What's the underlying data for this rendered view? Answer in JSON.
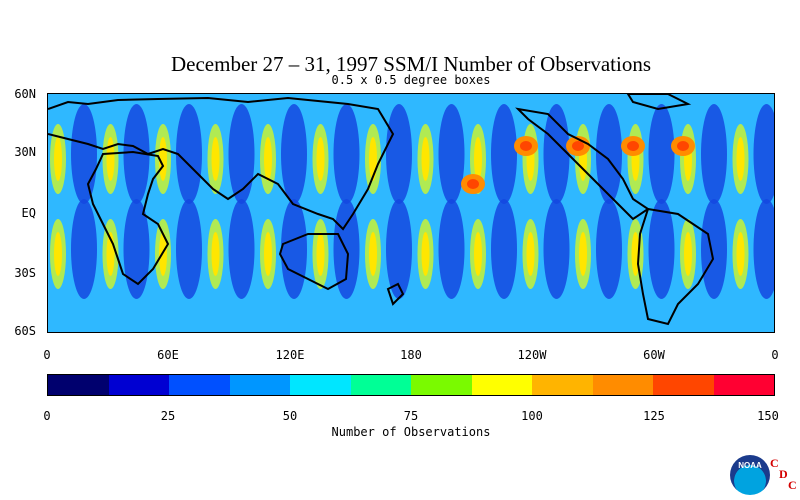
{
  "title": "December 27 – 31, 1997 SSM/I Number of Observations",
  "subtitle": "0.5 x 0.5 degree boxes",
  "map": {
    "lat_labels": [
      "60N",
      "30N",
      "EQ",
      "30S",
      "60S"
    ],
    "lon_labels": [
      "0",
      "60E",
      "120E",
      "180",
      "120W",
      "60W",
      "0"
    ]
  },
  "colorbar": {
    "colors": [
      "#00006e",
      "#0000d2",
      "#0050ff",
      "#0096ff",
      "#00e6ff",
      "#00ff96",
      "#7afa00",
      "#ffff00",
      "#ffb400",
      "#ff8c00",
      "#ff4600",
      "#ff0032"
    ],
    "tick_labels": [
      "0",
      "25",
      "50",
      "75",
      "100",
      "125",
      "150"
    ],
    "title": "Number of Observations"
  },
  "logo": {
    "noaa": "NOAA",
    "cdc": [
      "C",
      "D",
      "C"
    ]
  }
}
